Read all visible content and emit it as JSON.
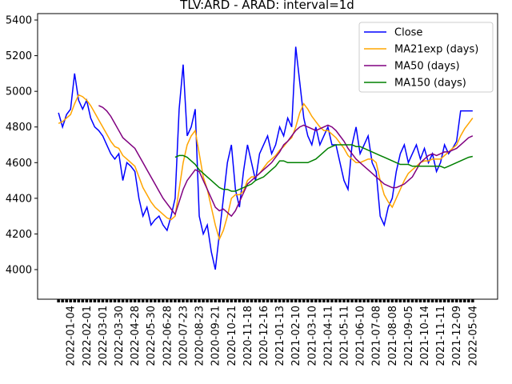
{
  "chart_data": {
    "type": "line",
    "title": "TLV:ARD - ARAD: interval=1d",
    "categories": [
      null,
      null,
      null,
      "2022-01-04",
      null,
      null,
      null,
      "2022-02-01",
      null,
      null,
      null,
      "2022-03-01",
      null,
      null,
      null,
      "2022-03-30",
      null,
      null,
      null,
      "2022-04-28",
      null,
      null,
      null,
      "2022-05-30",
      null,
      null,
      null,
      "2022-06-28",
      null,
      null,
      null,
      "2020-07-23",
      null,
      null,
      null,
      "2020-08-23",
      null,
      null,
      null,
      "2020-09-21",
      null,
      null,
      null,
      "2020-10-21",
      null,
      null,
      null,
      "2020-11-18",
      null,
      null,
      null,
      "2020-12-16",
      null,
      null,
      null,
      "2021-01-13",
      null,
      null,
      null,
      "2021-02-10",
      null,
      null,
      null,
      "2021-03-10",
      null,
      null,
      null,
      "2021-04-11",
      null,
      null,
      null,
      "2021-05-11",
      null,
      null,
      null,
      "2021-06-10",
      null,
      null,
      null,
      "2021-07-08",
      null,
      null,
      null,
      "2021-08-08",
      null,
      null,
      null,
      "2021-09-05",
      null,
      null,
      null,
      "2021-10-14",
      null,
      null,
      null,
      "2021-11-11",
      null,
      null,
      null,
      "2021-12-09",
      null,
      null,
      null,
      "2022-05-04"
    ],
    "series": [
      {
        "name": "Close",
        "color": "#0000ff",
        "values": [
          4880,
          4800,
          4870,
          4900,
          5100,
          4950,
          4900,
          4950,
          4850,
          4800,
          4780,
          4750,
          4700,
          4650,
          4620,
          4650,
          4500,
          4600,
          4580,
          4550,
          4400,
          4300,
          4350,
          4250,
          4280,
          4300,
          4250,
          4220,
          4300,
          4400,
          4900,
          5150,
          4750,
          4800,
          4900,
          4300,
          4200,
          4250,
          4100,
          4000,
          4200,
          4400,
          4600,
          4700,
          4450,
          4350,
          4550,
          4700,
          4600,
          4500,
          4650,
          4700,
          4750,
          4650,
          4700,
          4800,
          4750,
          4850,
          4800,
          5250,
          5050,
          4850,
          4750,
          4700,
          4800,
          4700,
          4750,
          4800,
          4700,
          4700,
          4600,
          4500,
          4450,
          4700,
          4800,
          4650,
          4700,
          4750,
          4600,
          4550,
          4300,
          4250,
          4350,
          4400,
          4550,
          4650,
          4700,
          4600,
          4650,
          4700,
          4620,
          4680,
          4600,
          4650,
          4550,
          4600,
          4700,
          4650,
          4680,
          4720,
          4890,
          4890,
          4890,
          4890
        ]
      },
      {
        "name": "MA21exp (days)",
        "color": "#ffa500",
        "values": [
          4820,
          4830,
          4850,
          4870,
          4930,
          4980,
          4970,
          4950,
          4920,
          4880,
          4840,
          4800,
          4760,
          4720,
          4690,
          4680,
          4640,
          4620,
          4600,
          4580,
          4520,
          4460,
          4420,
          4380,
          4350,
          4330,
          4310,
          4290,
          4280,
          4300,
          4450,
          4600,
          4700,
          4750,
          4780,
          4650,
          4520,
          4450,
          4350,
          4250,
          4170,
          4220,
          4300,
          4400,
          4420,
          4420,
          4440,
          4500,
          4520,
          4520,
          4540,
          4570,
          4600,
          4620,
          4640,
          4670,
          4690,
          4720,
          4740,
          4800,
          4880,
          4930,
          4900,
          4860,
          4830,
          4800,
          4780,
          4780,
          4760,
          4740,
          4710,
          4680,
          4640,
          4620,
          4600,
          4600,
          4610,
          4620,
          4620,
          4600,
          4500,
          4420,
          4380,
          4350,
          4400,
          4450,
          4500,
          4540,
          4560,
          4580,
          4600,
          4610,
          4610,
          4620,
          4620,
          4620,
          4640,
          4660,
          4680,
          4700,
          4750,
          4790,
          4820,
          4850
        ]
      },
      {
        "name": "MA50 (days)",
        "color": "#800080",
        "values": [
          null,
          null,
          null,
          null,
          null,
          null,
          null,
          null,
          null,
          null,
          4920,
          4910,
          4890,
          4860,
          4820,
          4780,
          4740,
          4720,
          4700,
          4680,
          4640,
          4600,
          4560,
          4520,
          4480,
          4440,
          4400,
          4370,
          4340,
          4310,
          4380,
          4450,
          4500,
          4530,
          4560,
          4550,
          4500,
          4450,
          4400,
          4350,
          4330,
          4340,
          4320,
          4300,
          4330,
          4380,
          4430,
          4480,
          4500,
          4520,
          4540,
          4560,
          4580,
          4600,
          4630,
          4660,
          4700,
          4720,
          4750,
          4780,
          4800,
          4810,
          4800,
          4790,
          4780,
          4790,
          4800,
          4810,
          4800,
          4780,
          4750,
          4720,
          4680,
          4650,
          4620,
          4600,
          4580,
          4560,
          4540,
          4520,
          4500,
          4480,
          4470,
          4460,
          4460,
          4470,
          4480,
          4500,
          4520,
          4560,
          4600,
          4620,
          4640,
          4650,
          4640,
          4650,
          4660,
          4660,
          4670,
          4680,
          4700,
          4720,
          4740,
          4750
        ]
      },
      {
        "name": "MA150 (days)",
        "color": "#008000",
        "values": [
          null,
          null,
          null,
          null,
          null,
          null,
          null,
          null,
          null,
          null,
          null,
          null,
          null,
          null,
          null,
          null,
          null,
          null,
          null,
          null,
          null,
          null,
          null,
          null,
          null,
          null,
          null,
          null,
          null,
          4630,
          4640,
          4640,
          4630,
          4610,
          4590,
          4560,
          4540,
          4520,
          4500,
          4480,
          4460,
          4450,
          4450,
          4440,
          4440,
          4450,
          4460,
          4470,
          4480,
          4500,
          4510,
          4520,
          4540,
          4560,
          4580,
          4610,
          4610,
          4600,
          4600,
          4600,
          4600,
          4600,
          4600,
          4610,
          4620,
          4640,
          4660,
          4680,
          4690,
          4700,
          4700,
          4700,
          4700,
          4700,
          4690,
          4690,
          4680,
          4670,
          4660,
          4650,
          4640,
          4630,
          4620,
          4610,
          4600,
          4590,
          4590,
          4590,
          4580,
          4580,
          4580,
          4580,
          4580,
          4580,
          4580,
          4580,
          4570,
          4580,
          4590,
          4600,
          4610,
          4620,
          4630,
          4635
        ]
      }
    ],
    "ylim": [
      3834,
      5436
    ],
    "yticks": [
      4000,
      4200,
      4400,
      4600,
      4800,
      5000,
      5200,
      5400
    ],
    "legend": "upper right"
  }
}
